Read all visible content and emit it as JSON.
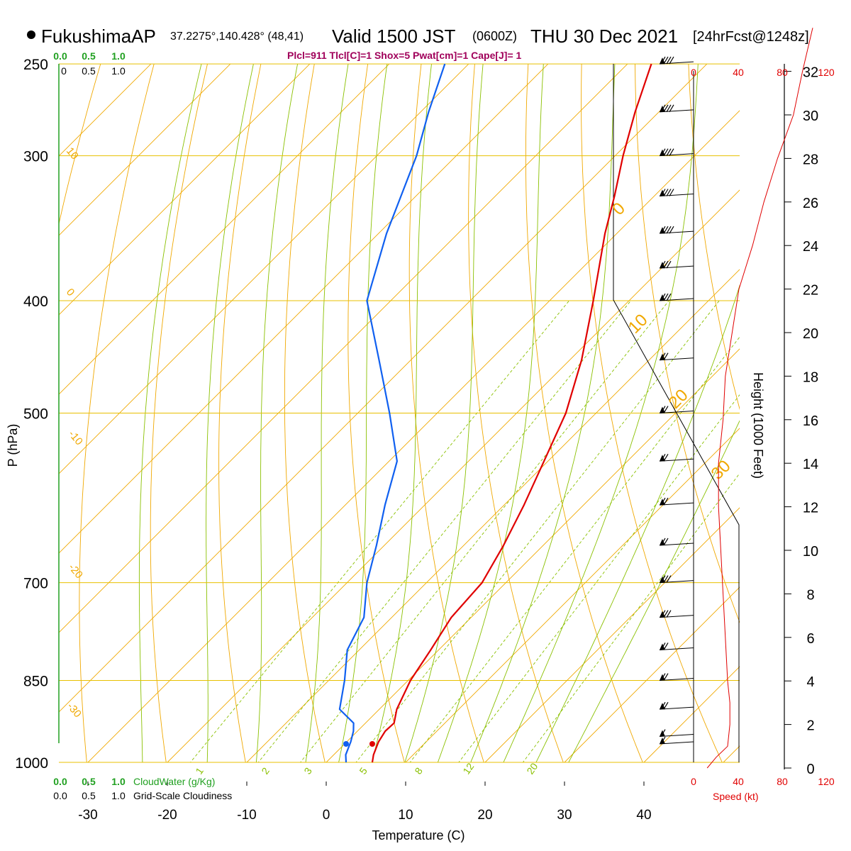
{
  "header": {
    "station": "FukushimaAP",
    "coords": "37.2275°,140.428° (48,41)",
    "valid_prefix": "Valid 1500 JST",
    "valid_z": "(0600Z)",
    "valid_date": "THU 30 Dec 2021",
    "forecast": "[24hrFcst@1248z]",
    "indices": "Plcl=911 Tlcl[C]=1 Shox=5 Pwat[cm]=1 Cape[J]= 1"
  },
  "colors": {
    "isotherm": "#f0a800",
    "dry_adiabat": "#f0a800",
    "moist_adiabat": "#8ac000",
    "mixing_ratio": "#8ac000",
    "temperature": "#e00000",
    "dewpoint": "#1060f0",
    "cloud": "#20a020",
    "speed": "#e00000",
    "wind": "#000000",
    "parcel": "#a0005a"
  },
  "chart_data": {
    "type": "line",
    "title": "FukushimaAP",
    "xlabel": "Temperature (C)",
    "ylabel": "P (hPa)",
    "y2label": "Height (1000 Feet)",
    "x_ticks": [
      -30,
      -20,
      -10,
      0,
      10,
      20,
      30,
      40
    ],
    "pressure_ticks": [
      250,
      300,
      400,
      500,
      700,
      850,
      1000
    ],
    "height_ticks": [
      0,
      2,
      4,
      6,
      8,
      10,
      12,
      14,
      16,
      18,
      20,
      22,
      24,
      26,
      28,
      30,
      32
    ],
    "cloud_axis": {
      "ticks": [
        "0.0",
        "0.5",
        "1.0"
      ],
      "ticks_top": [
        "0",
        "0.5",
        "1.0"
      ],
      "cloudwater_label": "CloudWater (g/Kg)",
      "cloudiness_label": "Grid-Scale Cloudiness"
    },
    "speed_axis": {
      "ticks": [
        0,
        40,
        80,
        120
      ],
      "label": "Speed (kt)"
    },
    "isotherm_labels": [
      0,
      10,
      20,
      30
    ],
    "dry_adiabat_labels": [
      10,
      0,
      -10,
      -20,
      -30
    ],
    "mixing_ratio_labels": [
      "1",
      "2",
      "3",
      "5",
      "8",
      "12",
      "20"
    ],
    "series": [
      {
        "name": "Temperature",
        "points": [
          [
            1000,
            5.8
          ],
          [
            985,
            5.0
          ],
          [
            960,
            4.0
          ],
          [
            940,
            3.5
          ],
          [
            925,
            3.6
          ],
          [
            900,
            2.2
          ],
          [
            850,
            0.3
          ],
          [
            800,
            -1.0
          ],
          [
            750,
            -2.5
          ],
          [
            700,
            -3.0
          ],
          [
            650,
            -5.0
          ],
          [
            600,
            -7.5
          ],
          [
            550,
            -10.5
          ],
          [
            500,
            -13.8
          ],
          [
            450,
            -18.5
          ],
          [
            400,
            -24.5
          ],
          [
            350,
            -31.5
          ],
          [
            325,
            -35.0
          ],
          [
            300,
            -39.0
          ],
          [
            275,
            -43.0
          ],
          [
            250,
            -47.0
          ]
        ]
      },
      {
        "name": "Dewpoint",
        "points": [
          [
            1000,
            2.5
          ],
          [
            985,
            1.5
          ],
          [
            960,
            0.5
          ],
          [
            940,
            -0.5
          ],
          [
            925,
            -1.5
          ],
          [
            900,
            -5.0
          ],
          [
            850,
            -8.0
          ],
          [
            800,
            -11.5
          ],
          [
            750,
            -13.5
          ],
          [
            700,
            -17.5
          ],
          [
            650,
            -21.0
          ],
          [
            600,
            -25.0
          ],
          [
            550,
            -29.0
          ],
          [
            500,
            -36.0
          ],
          [
            450,
            -44.0
          ],
          [
            400,
            -53.0
          ],
          [
            350,
            -59.0
          ],
          [
            300,
            -65.0
          ],
          [
            275,
            -69.0
          ],
          [
            250,
            -73.0
          ]
        ]
      }
    ],
    "speed_profile_kt": [
      [
        0,
        12
      ],
      [
        0.5,
        20
      ],
      [
        1,
        30
      ],
      [
        2,
        32
      ],
      [
        3,
        32
      ],
      [
        4,
        30
      ],
      [
        6,
        28
      ],
      [
        8,
        26
      ],
      [
        10,
        24
      ],
      [
        12,
        22
      ],
      [
        14,
        22
      ],
      [
        16,
        26
      ],
      [
        18,
        28
      ],
      [
        20,
        34
      ],
      [
        22,
        40
      ],
      [
        24,
        52
      ],
      [
        26,
        62
      ],
      [
        28,
        74
      ],
      [
        30,
        88
      ],
      [
        32,
        96
      ],
      [
        34,
        105
      ]
    ],
    "wind_barbs": [
      {
        "p": 250,
        "kt": 40
      },
      {
        "p": 275,
        "kt": 35
      },
      {
        "p": 300,
        "kt": 40
      },
      {
        "p": 325,
        "kt": 35
      },
      {
        "p": 350,
        "kt": 35
      },
      {
        "p": 375,
        "kt": 30
      },
      {
        "p": 400,
        "kt": 25
      },
      {
        "p": 450,
        "kt": 20
      },
      {
        "p": 500,
        "kt": 20
      },
      {
        "p": 550,
        "kt": 20
      },
      {
        "p": 600,
        "kt": 20
      },
      {
        "p": 650,
        "kt": 20
      },
      {
        "p": 700,
        "kt": 25
      },
      {
        "p": 750,
        "kt": 25
      },
      {
        "p": 800,
        "kt": 20
      },
      {
        "p": 850,
        "kt": 20
      },
      {
        "p": 900,
        "kt": 15
      },
      {
        "p": 950,
        "kt": 10
      },
      {
        "p": 1000,
        "kt": 10
      }
    ],
    "grid": true
  }
}
